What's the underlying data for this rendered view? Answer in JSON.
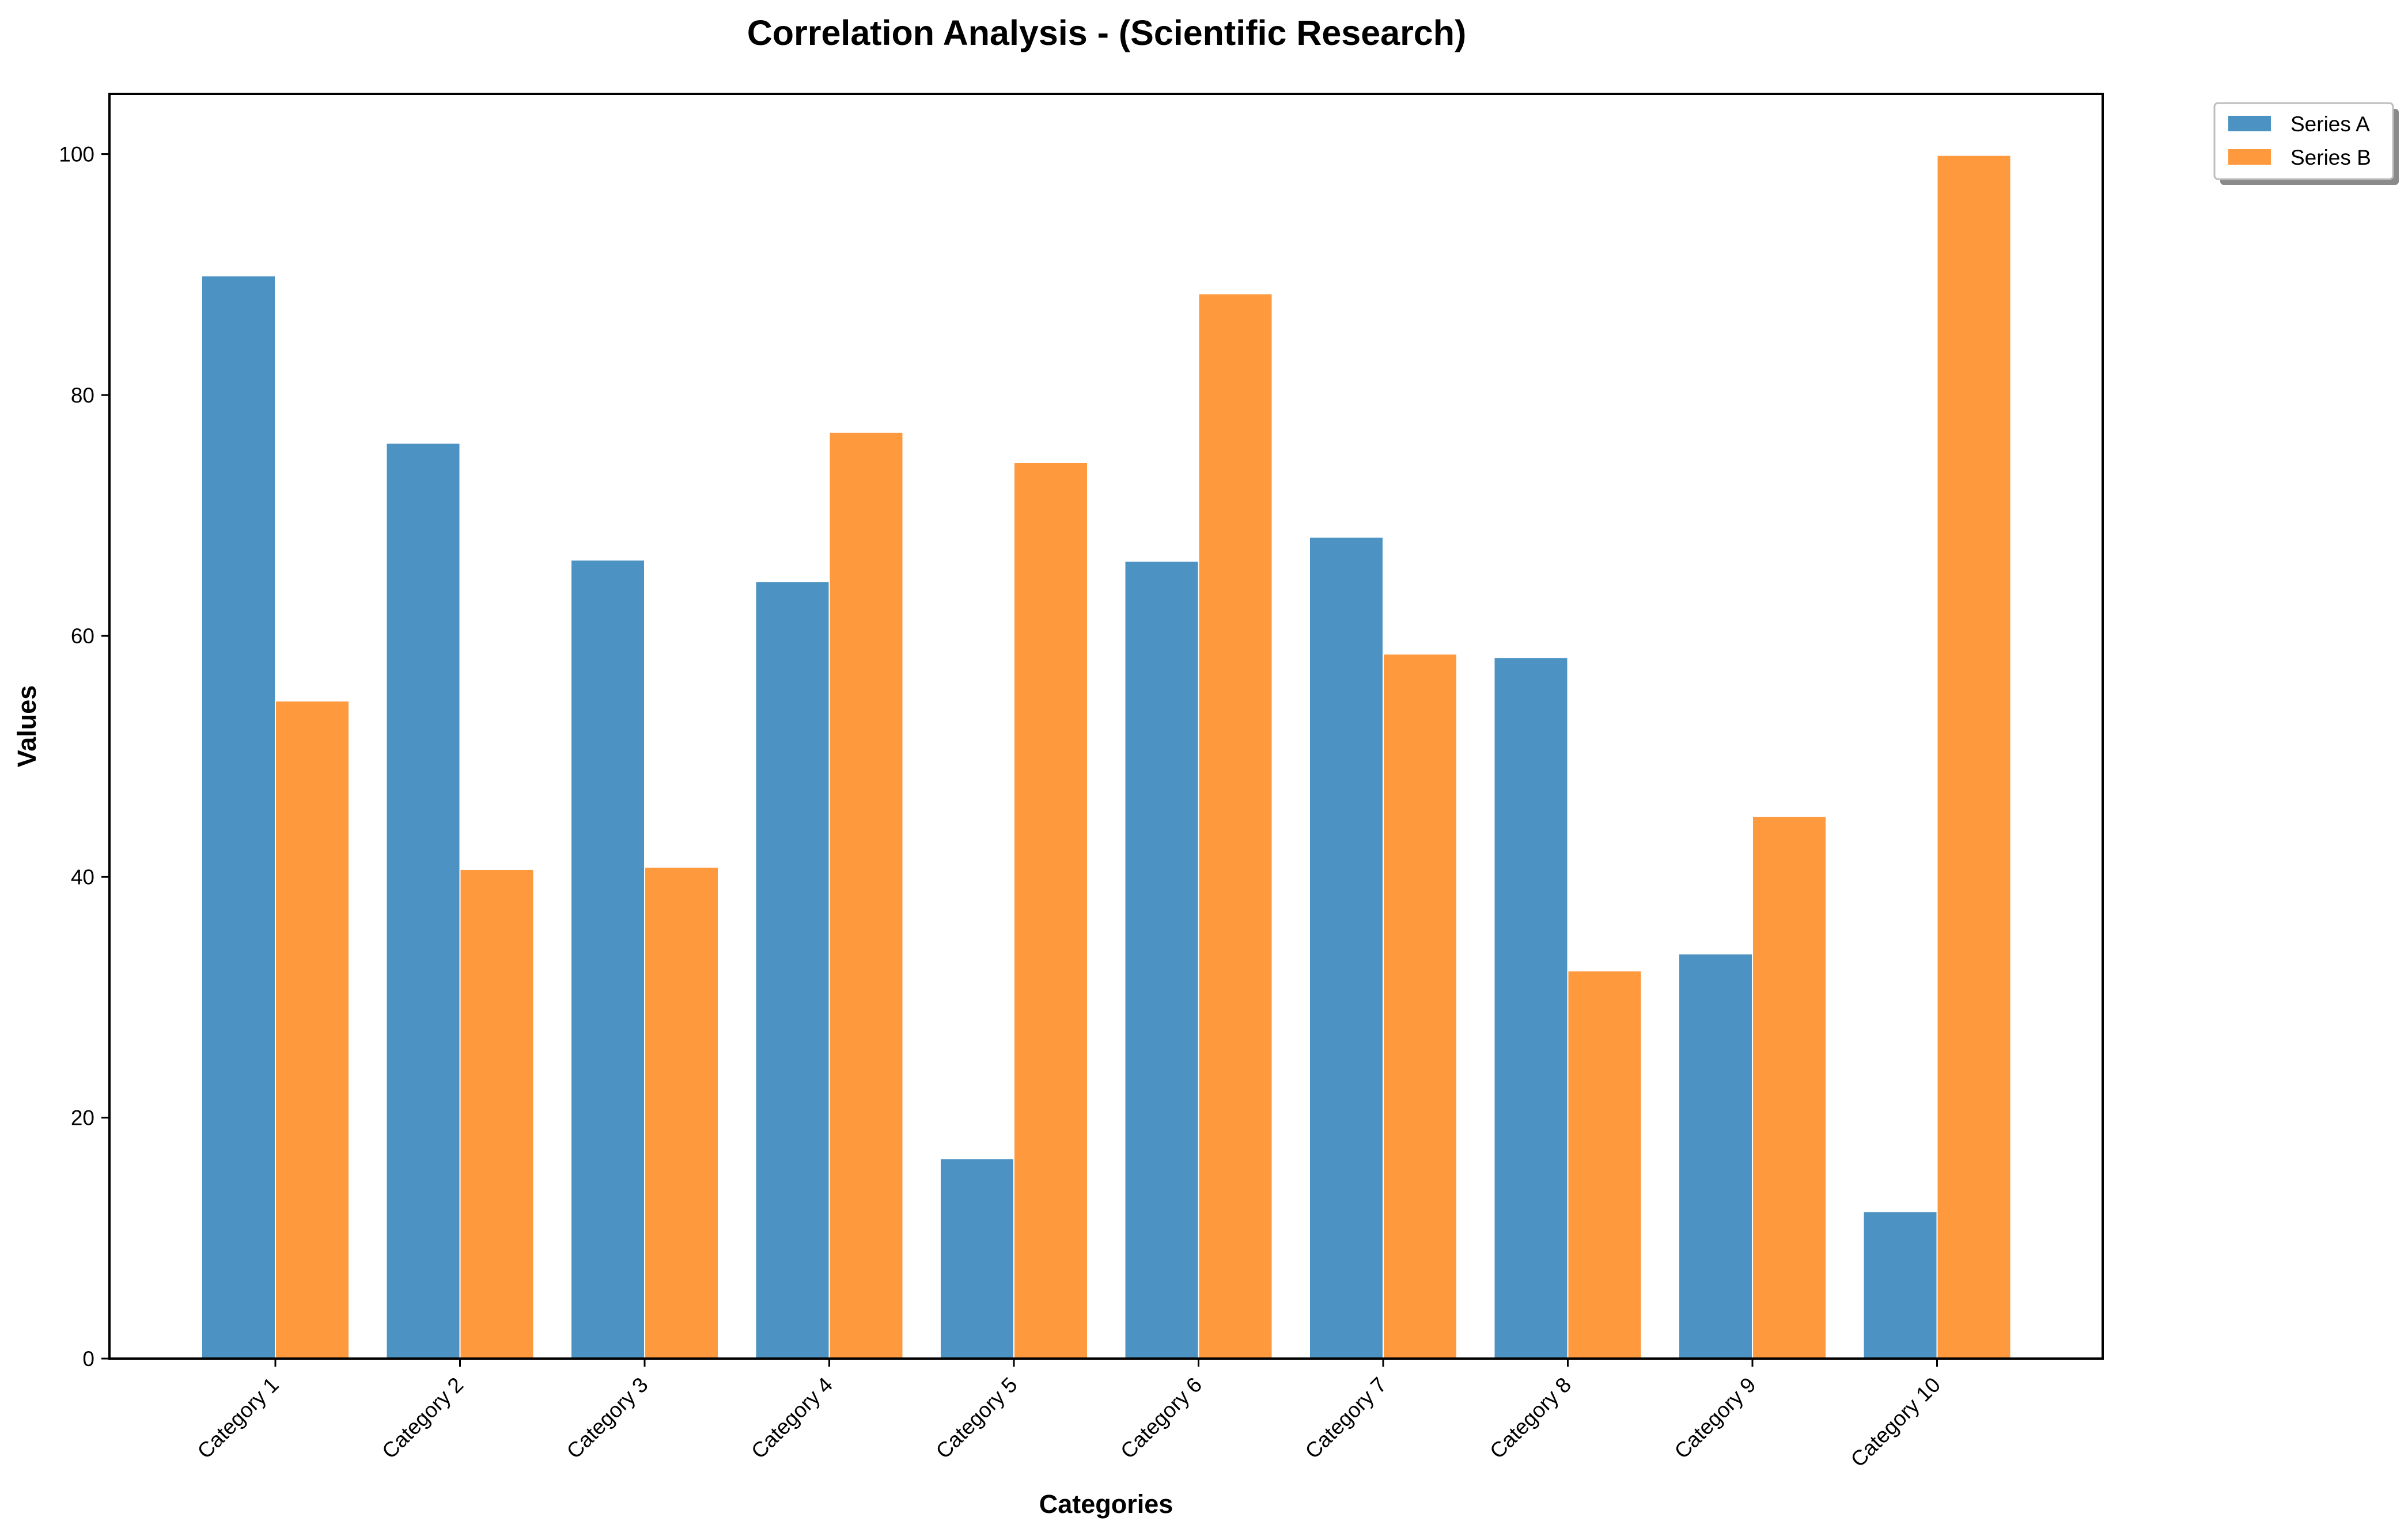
{
  "chart_data": {
    "type": "bar",
    "title": "Correlation Analysis - (Scientific Research)",
    "xlabel": "Categories",
    "ylabel": "Values",
    "categories": [
      "Category 1",
      "Category 2",
      "Category 3",
      "Category 4",
      "Category 5",
      "Category 6",
      "Category 7",
      "Category 8",
      "Category 9",
      "Category 10"
    ],
    "series": [
      {
        "name": "Series A",
        "color": "#4c93c3",
        "values": [
          89.9,
          76.0,
          66.3,
          64.5,
          16.6,
          66.2,
          68.2,
          58.2,
          33.6,
          12.2
        ]
      },
      {
        "name": "Series B",
        "color": "#ff993e",
        "values": [
          54.6,
          40.6,
          40.8,
          76.9,
          74.4,
          88.4,
          58.5,
          32.2,
          45.0,
          99.9
        ]
      }
    ],
    "ylim": [
      0,
      105
    ],
    "yticks": [
      0,
      20,
      40,
      60,
      80,
      100
    ],
    "grid": false,
    "legend_position": "upper-right-outside"
  }
}
